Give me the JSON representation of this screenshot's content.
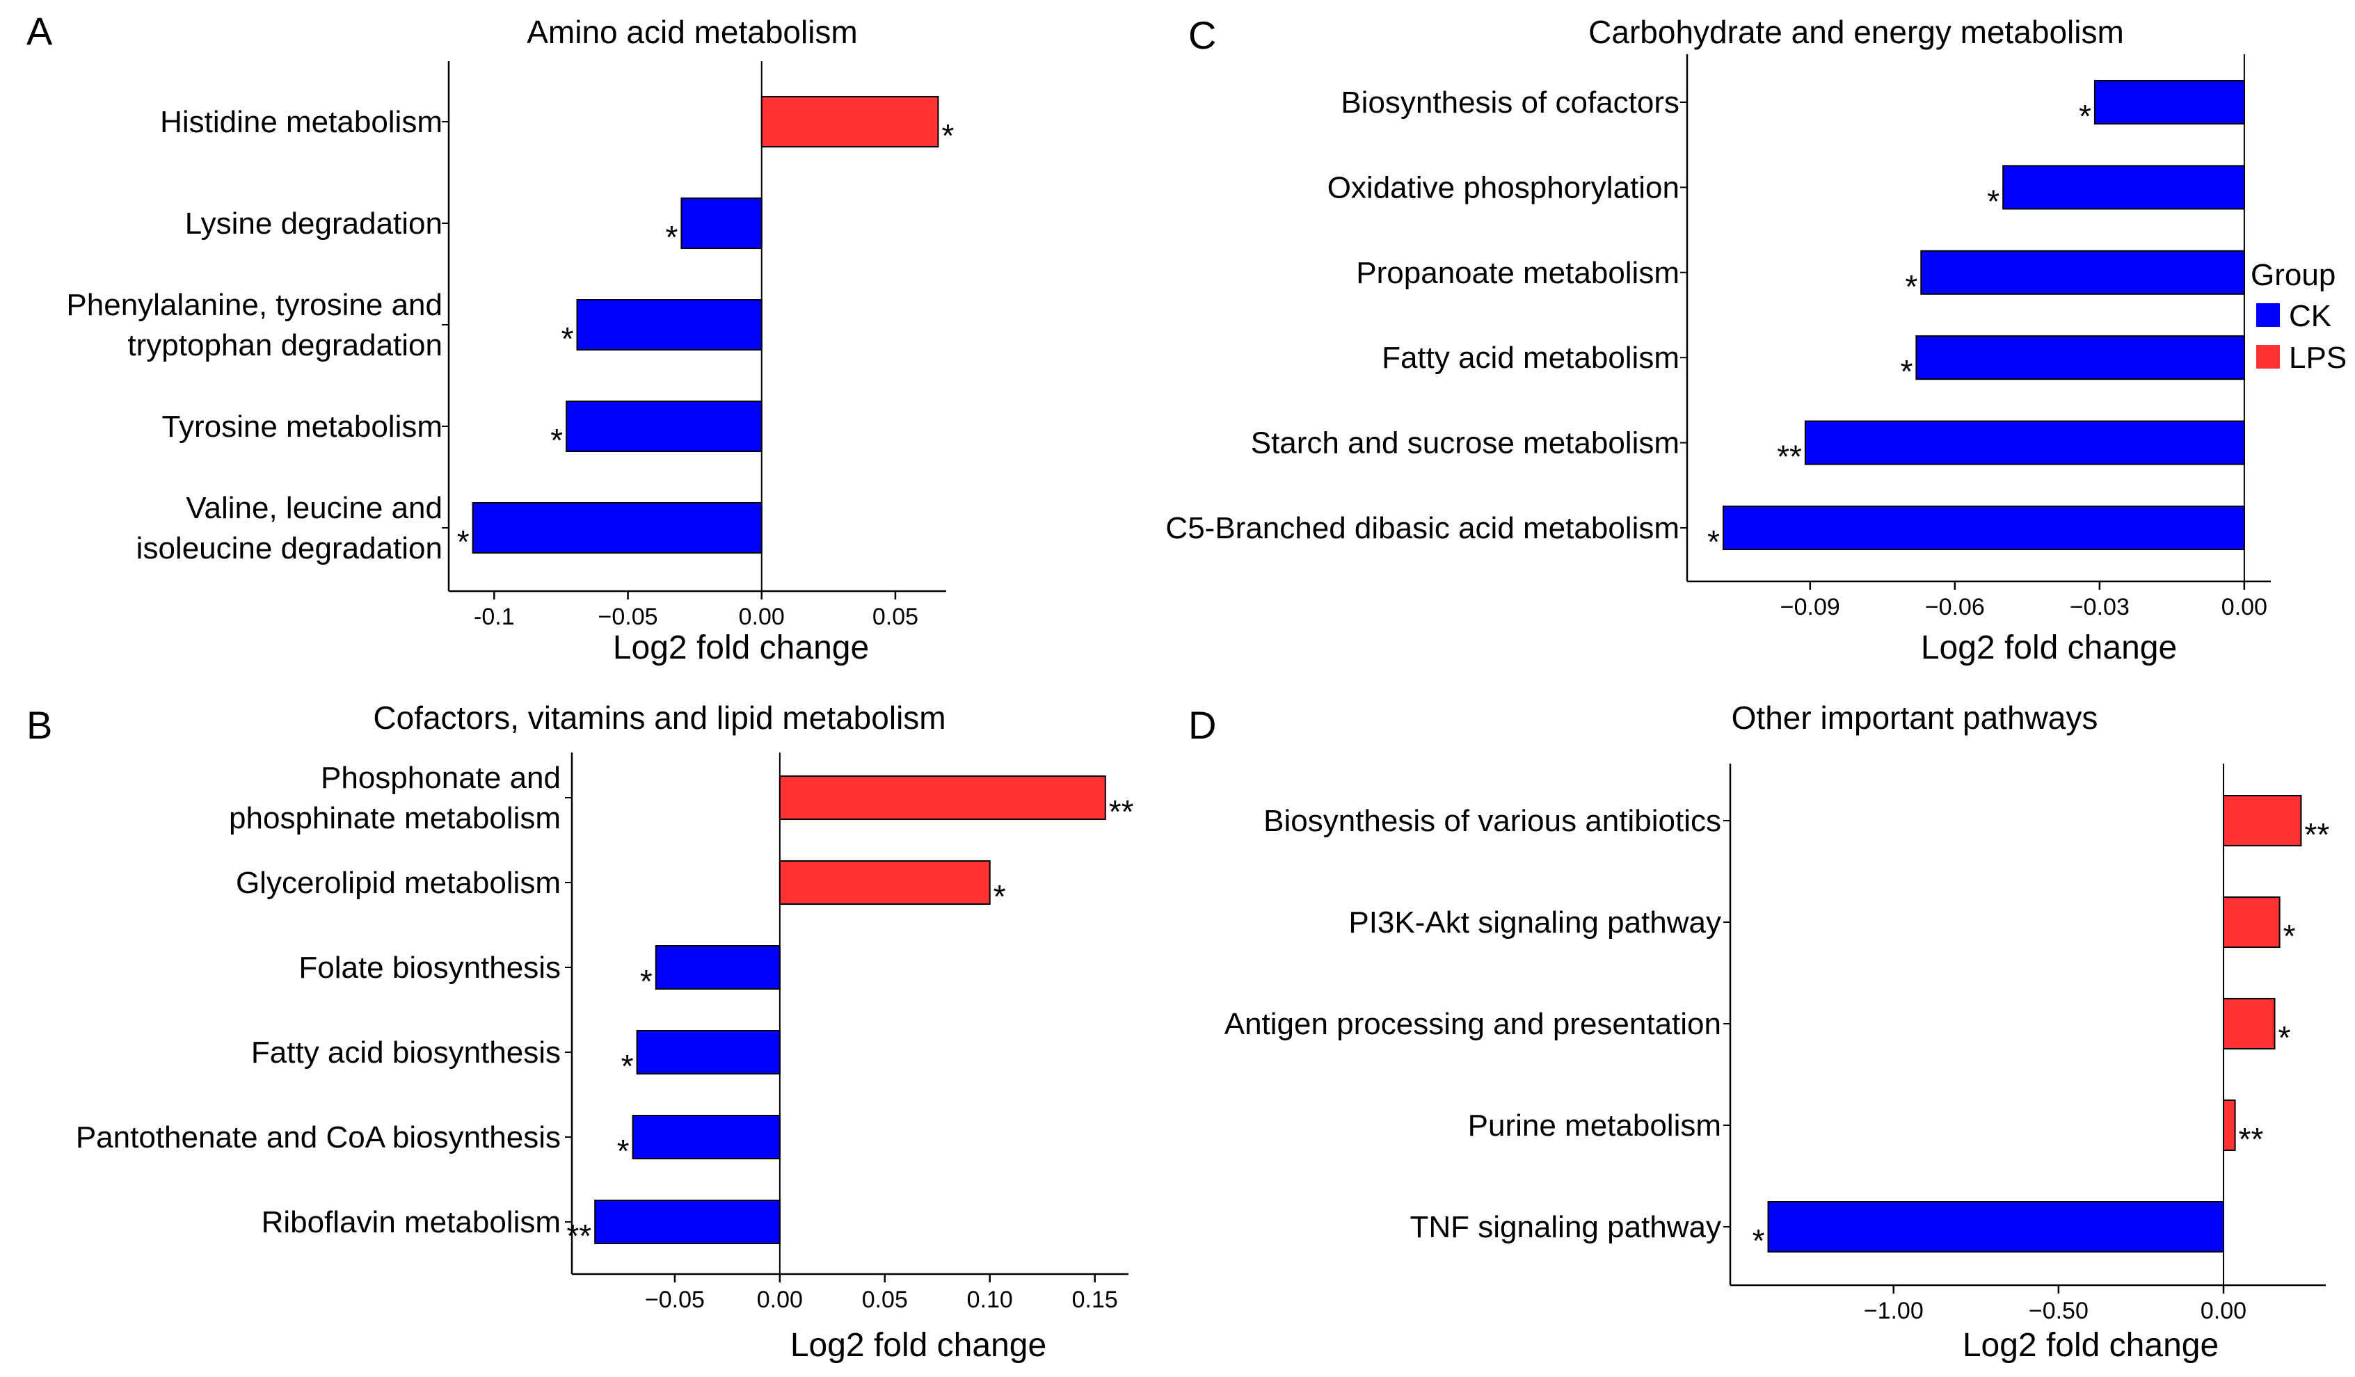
{
  "colors": {
    "CK": "#0000FF",
    "LPS": "#FF3333",
    "axis": "#000000"
  },
  "legend": {
    "title": "Group",
    "entries": [
      {
        "label": "CK",
        "color_key": "CK"
      },
      {
        "label": "LPS",
        "color_key": "LPS"
      }
    ]
  },
  "chart_data": [
    {
      "panel_label": "A",
      "type": "bar",
      "orientation": "horizontal",
      "title": "Amino acid metabolism",
      "xlabel": "Log2 fold change",
      "xlim": [
        -0.117,
        0.069
      ],
      "ticks": [
        {
          "v": -0.1,
          "label": "-0.1"
        },
        {
          "v": -0.05,
          "label": "−0.05"
        },
        {
          "v": 0,
          "label": "0.00"
        },
        {
          "v": 0.05,
          "label": "0.05"
        }
      ],
      "bars": [
        {
          "lines": [
            "Histidine metabolism"
          ],
          "value": 0.066,
          "group": "LPS",
          "sig": "*"
        },
        {
          "lines": [
            "Lysine degradation"
          ],
          "value": -0.03,
          "group": "CK",
          "sig": "*"
        },
        {
          "lines": [
            "Phenylalanine, tyrosine and",
            "tryptophan degradation"
          ],
          "value": -0.069,
          "group": "CK",
          "sig": "*"
        },
        {
          "lines": [
            "Tyrosine metabolism"
          ],
          "value": -0.073,
          "group": "CK",
          "sig": "*"
        },
        {
          "lines": [
            "Valine, leucine and",
            "isoleucine degradation"
          ],
          "value": -0.108,
          "group": "CK",
          "sig": "*"
        }
      ]
    },
    {
      "panel_label": "B",
      "type": "bar",
      "orientation": "horizontal",
      "title": "Cofactors, vitamins and lipid metabolism",
      "xlabel": "Log2 fold change",
      "xlim": [
        -0.099,
        0.166
      ],
      "ticks": [
        {
          "v": -0.05,
          "label": "−0.05"
        },
        {
          "v": 0,
          "label": "0.00"
        },
        {
          "v": 0.05,
          "label": "0.05"
        },
        {
          "v": 0.1,
          "label": "0.10"
        },
        {
          "v": 0.15,
          "label": "0.15"
        }
      ],
      "bars": [
        {
          "lines": [
            "Phosphonate and",
            "phosphinate metabolism"
          ],
          "value": 0.155,
          "group": "LPS",
          "sig": "**"
        },
        {
          "lines": [
            "Glycerolipid metabolism"
          ],
          "value": 0.1,
          "group": "LPS",
          "sig": "*"
        },
        {
          "lines": [
            "Folate biosynthesis"
          ],
          "value": -0.059,
          "group": "CK",
          "sig": "*"
        },
        {
          "lines": [
            "Fatty acid biosynthesis"
          ],
          "value": -0.068,
          "group": "CK",
          "sig": "*"
        },
        {
          "lines": [
            "Pantothenate and CoA biosynthesis"
          ],
          "value": -0.07,
          "group": "CK",
          "sig": "*"
        },
        {
          "lines": [
            "Riboflavin metabolism"
          ],
          "value": -0.088,
          "group": "CK",
          "sig": "**"
        }
      ]
    },
    {
      "panel_label": "C",
      "type": "bar",
      "orientation": "horizontal",
      "title": "Carbohydrate and energy metabolism",
      "xlabel": "Log2 fold change",
      "xlim": [
        -0.1155,
        0.0055
      ],
      "ticks": [
        {
          "v": -0.09,
          "label": "−0.09"
        },
        {
          "v": -0.06,
          "label": "−0.06"
        },
        {
          "v": -0.03,
          "label": "−0.03"
        },
        {
          "v": 0,
          "label": "0.00"
        }
      ],
      "bars": [
        {
          "lines": [
            "Biosynthesis of cofactors"
          ],
          "value": -0.031,
          "group": "CK",
          "sig": "*"
        },
        {
          "lines": [
            "Oxidative phosphorylation"
          ],
          "value": -0.05,
          "group": "CK",
          "sig": "*"
        },
        {
          "lines": [
            "Propanoate metabolism"
          ],
          "value": -0.067,
          "group": "CK",
          "sig": "*"
        },
        {
          "lines": [
            "Fatty acid metabolism"
          ],
          "value": -0.068,
          "group": "CK",
          "sig": "*"
        },
        {
          "lines": [
            "Starch and sucrose metabolism"
          ],
          "value": -0.091,
          "group": "CK",
          "sig": "**"
        },
        {
          "lines": [
            "C5-Branched dibasic acid metabolism"
          ],
          "value": -0.108,
          "group": "CK",
          "sig": "*"
        }
      ]
    },
    {
      "panel_label": "D",
      "type": "bar",
      "orientation": "horizontal",
      "title": "Other important pathways",
      "xlabel": "Log2 fold change",
      "xlim": [
        -1.495,
        0.31
      ],
      "ticks": [
        {
          "v": -1,
          "label": "−1.00"
        },
        {
          "v": -0.5,
          "label": "−0.50"
        },
        {
          "v": 0,
          "label": "0.00"
        }
      ],
      "bars": [
        {
          "lines": [
            "Biosynthesis of various antibiotics"
          ],
          "value": 0.235,
          "group": "LPS",
          "sig": "**"
        },
        {
          "lines": [
            "PI3K-Akt signaling pathway"
          ],
          "value": 0.17,
          "group": "LPS",
          "sig": "*"
        },
        {
          "lines": [
            "Antigen processing and presentation"
          ],
          "value": 0.155,
          "group": "LPS",
          "sig": "*"
        },
        {
          "lines": [
            "Purine metabolism"
          ],
          "value": 0.035,
          "group": "LPS",
          "sig": "**"
        },
        {
          "lines": [
            "TNF signaling pathway"
          ],
          "value": -1.38,
          "group": "CK",
          "sig": "*"
        }
      ]
    }
  ]
}
